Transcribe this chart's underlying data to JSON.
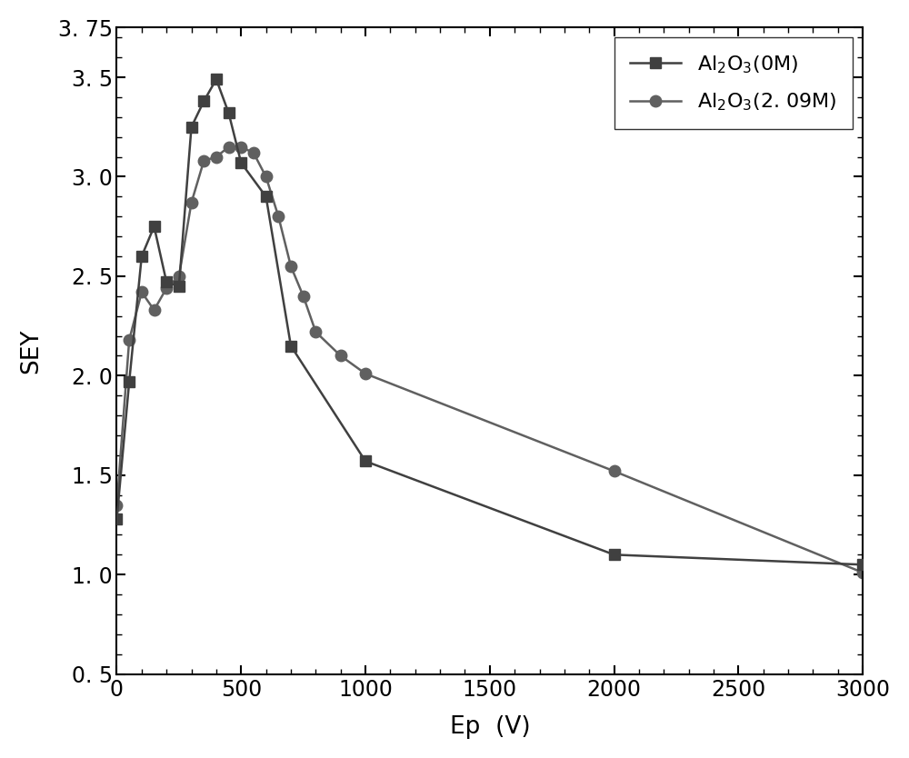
{
  "series1_label": "Al$_2$O$_3$(0M)",
  "series2_label": "Al$_2$O$_3$(2. 09M)",
  "series1_x": [
    0,
    50,
    100,
    150,
    200,
    250,
    300,
    350,
    400,
    450,
    500,
    600,
    700,
    1000,
    2000,
    3000
  ],
  "series1_y": [
    1.28,
    1.97,
    2.6,
    2.75,
    2.47,
    2.45,
    3.25,
    3.38,
    3.49,
    3.32,
    3.07,
    2.9,
    2.15,
    1.57,
    1.1,
    1.05
  ],
  "series2_x": [
    0,
    50,
    100,
    150,
    200,
    250,
    300,
    350,
    400,
    450,
    500,
    550,
    600,
    650,
    700,
    750,
    800,
    900,
    1000,
    2000,
    3000
  ],
  "series2_y": [
    1.35,
    2.18,
    2.42,
    2.33,
    2.44,
    2.5,
    2.87,
    3.08,
    3.1,
    3.15,
    3.15,
    3.12,
    3.0,
    2.8,
    2.55,
    2.4,
    2.22,
    2.1,
    2.01,
    1.52,
    1.01
  ],
  "line_color1": "#404040",
  "line_color2": "#606060",
  "xlabel": "Ep  (V)",
  "ylabel": "SEY",
  "xlim": [
    0,
    3000
  ],
  "ylim": [
    0.5,
    3.75
  ],
  "xticks": [
    0,
    500,
    1000,
    1500,
    2000,
    2500,
    3000
  ],
  "yticks": [
    0.5,
    1.0,
    1.5,
    2.0,
    2.5,
    3.0,
    3.5,
    3.75
  ],
  "ytick_labels": [
    "0. 5",
    "1. 0",
    "1. 5",
    "2. 0",
    "2. 5",
    "3. 0",
    "3. 5",
    "3. 75"
  ],
  "xtick_labels": [
    "0",
    "500",
    "1000",
    "1500",
    "2000",
    "2500",
    "3000"
  ],
  "linewidth": 1.8,
  "markersize_sq": 8,
  "markersize_ci": 9,
  "tick_fontsize": 17,
  "label_fontsize": 19,
  "legend_fontsize": 16
}
